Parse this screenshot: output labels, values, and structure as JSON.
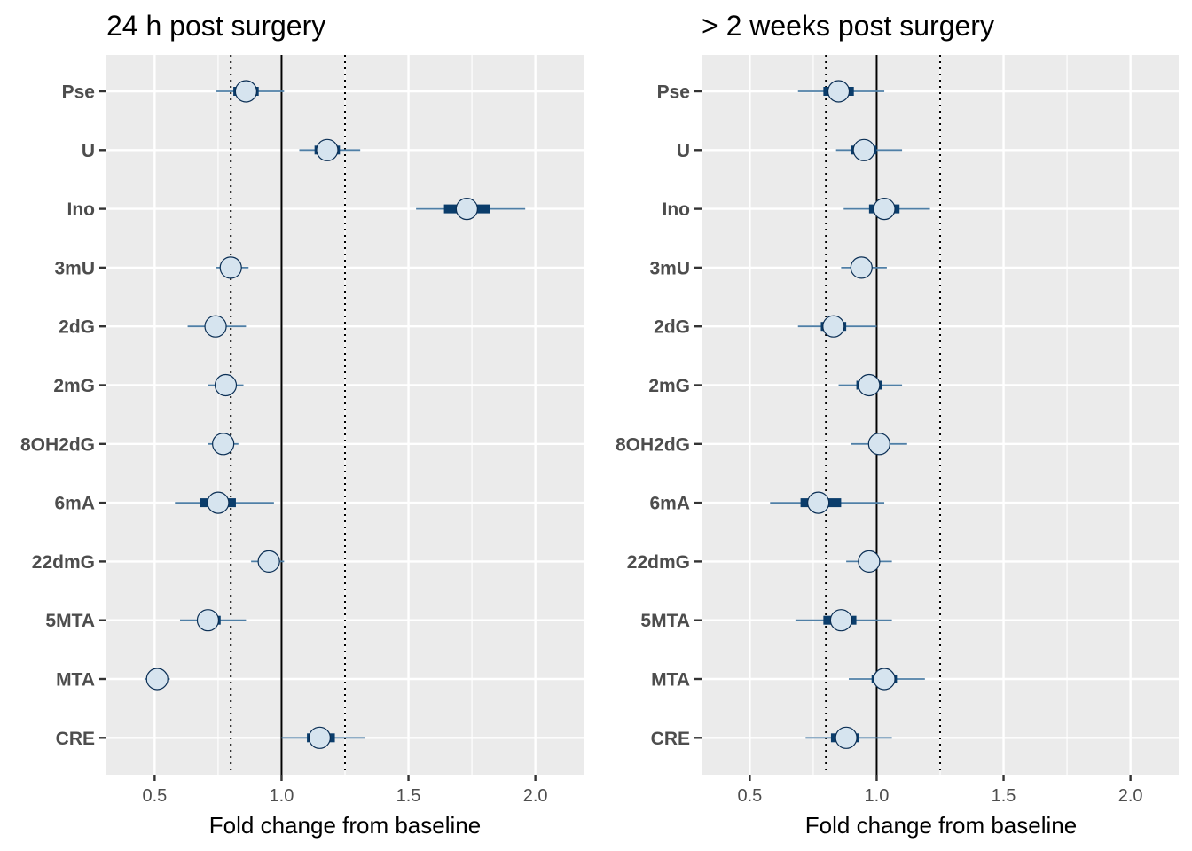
{
  "chart_data": [
    {
      "type": "forest",
      "title": "24 h post surgery",
      "xlabel": "Fold change from baseline",
      "ylabel": "",
      "xlim": [
        0.31,
        2.19
      ],
      "xticks": [
        0.5,
        1.0,
        1.5,
        2.0
      ],
      "xtick_labels": [
        "0.5",
        "1.0",
        "1.5",
        "2.0"
      ],
      "reference_line": 1.0,
      "dotted_lines": [
        0.8,
        1.25
      ],
      "grid": true,
      "categories": [
        "Pse",
        "U",
        "Ino",
        "3mU",
        "2dG",
        "2mG",
        "8OH2dG",
        "6mA",
        "22dmG",
        "5MTA",
        "MTA",
        "CRE"
      ],
      "points": [
        {
          "label": "Pse",
          "estimate": 0.86,
          "inner": [
            0.81,
            0.91
          ],
          "outer": [
            0.74,
            1.01
          ]
        },
        {
          "label": "U",
          "estimate": 1.18,
          "inner": [
            1.13,
            1.23
          ],
          "outer": [
            1.07,
            1.31
          ]
        },
        {
          "label": "Ino",
          "estimate": 1.73,
          "inner": [
            1.64,
            1.82
          ],
          "outer": [
            1.53,
            1.96
          ]
        },
        {
          "label": "3mU",
          "estimate": 0.8,
          "inner": [
            0.78,
            0.82
          ],
          "outer": [
            0.74,
            0.87
          ]
        },
        {
          "label": "2dG",
          "estimate": 0.74,
          "inner": [
            0.71,
            0.77
          ],
          "outer": [
            0.63,
            0.86
          ]
        },
        {
          "label": "2mG",
          "estimate": 0.78,
          "inner": [
            0.76,
            0.8
          ],
          "outer": [
            0.71,
            0.85
          ]
        },
        {
          "label": "8OH2dG",
          "estimate": 0.77,
          "inner": [
            0.75,
            0.79
          ],
          "outer": [
            0.71,
            0.83
          ]
        },
        {
          "label": "6mA",
          "estimate": 0.75,
          "inner": [
            0.68,
            0.82
          ],
          "outer": [
            0.58,
            0.97
          ]
        },
        {
          "label": "22dmG",
          "estimate": 0.95,
          "inner": [
            0.93,
            0.97
          ],
          "outer": [
            0.88,
            1.01
          ]
        },
        {
          "label": "5MTA",
          "estimate": 0.71,
          "inner": [
            0.67,
            0.76
          ],
          "outer": [
            0.6,
            0.86
          ]
        },
        {
          "label": "MTA",
          "estimate": 0.51,
          "inner": [
            0.49,
            0.53
          ],
          "outer": [
            0.46,
            0.56
          ]
        },
        {
          "label": "CRE",
          "estimate": 1.15,
          "inner": [
            1.1,
            1.21
          ],
          "outer": [
            1.0,
            1.33
          ]
        }
      ]
    },
    {
      "type": "forest",
      "title": "> 2 weeks post surgery",
      "xlabel": "Fold change from baseline",
      "ylabel": "",
      "xlim": [
        0.31,
        2.19
      ],
      "xticks": [
        0.5,
        1.0,
        1.5,
        2.0
      ],
      "xtick_labels": [
        "0.5",
        "1.0",
        "1.5",
        "2.0"
      ],
      "reference_line": 1.0,
      "dotted_lines": [
        0.8,
        1.25
      ],
      "grid": true,
      "categories": [
        "Pse",
        "U",
        "Ino",
        "3mU",
        "2dG",
        "2mG",
        "8OH2dG",
        "6mA",
        "22dmG",
        "5MTA",
        "MTA",
        "CRE"
      ],
      "points": [
        {
          "label": "Pse",
          "estimate": 0.85,
          "inner": [
            0.79,
            0.91
          ],
          "outer": [
            0.69,
            1.03
          ]
        },
        {
          "label": "U",
          "estimate": 0.95,
          "inner": [
            0.9,
            1.0
          ],
          "outer": [
            0.84,
            1.1
          ]
        },
        {
          "label": "Ino",
          "estimate": 1.03,
          "inner": [
            0.97,
            1.09
          ],
          "outer": [
            0.87,
            1.21
          ]
        },
        {
          "label": "3mU",
          "estimate": 0.94,
          "inner": [
            0.91,
            0.97
          ],
          "outer": [
            0.86,
            1.04
          ]
        },
        {
          "label": "2dG",
          "estimate": 0.83,
          "inner": [
            0.78,
            0.88
          ],
          "outer": [
            0.69,
            1.0
          ]
        },
        {
          "label": "2mG",
          "estimate": 0.97,
          "inner": [
            0.92,
            1.02
          ],
          "outer": [
            0.85,
            1.1
          ]
        },
        {
          "label": "8OH2dG",
          "estimate": 1.01,
          "inner": [
            0.97,
            1.05
          ],
          "outer": [
            0.9,
            1.12
          ]
        },
        {
          "label": "6mA",
          "estimate": 0.77,
          "inner": [
            0.7,
            0.86
          ],
          "outer": [
            0.58,
            1.03
          ]
        },
        {
          "label": "22dmG",
          "estimate": 0.97,
          "inner": [
            0.94,
            1.0
          ],
          "outer": [
            0.88,
            1.06
          ]
        },
        {
          "label": "5MTA",
          "estimate": 0.86,
          "inner": [
            0.79,
            0.92
          ],
          "outer": [
            0.68,
            1.06
          ]
        },
        {
          "label": "MTA",
          "estimate": 1.03,
          "inner": [
            0.98,
            1.08
          ],
          "outer": [
            0.89,
            1.19
          ]
        },
        {
          "label": "CRE",
          "estimate": 0.88,
          "inner": [
            0.82,
            0.93
          ],
          "outer": [
            0.72,
            1.06
          ]
        }
      ]
    }
  ],
  "colors": {
    "panel_bg": "#ebebeb",
    "grid": "#ffffff",
    "whisker": "#4f7fa6",
    "inner_bar": "#0b3d6b",
    "point_fill": "#d6e4ef",
    "point_stroke": "#0b2f55",
    "reference": "#000000",
    "tick_text": "#4d4d4d"
  }
}
